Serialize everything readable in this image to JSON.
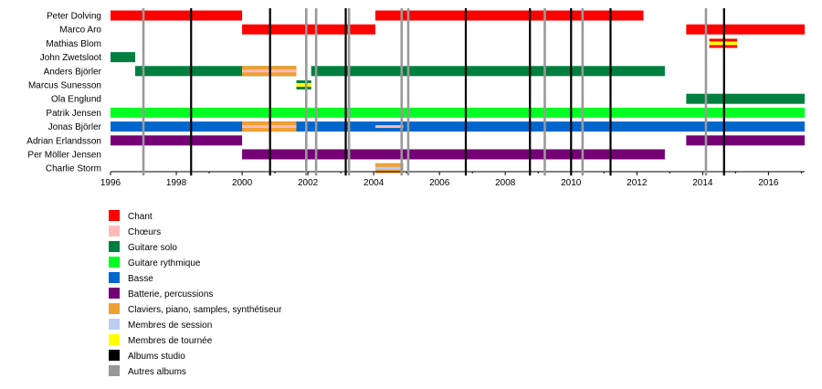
{
  "chart_data": {
    "type": "timeline",
    "title": "",
    "xlim": [
      1996,
      2017.1
    ],
    "x_ticks": [
      1996,
      1998,
      2000,
      2002,
      2004,
      2006,
      2008,
      2010,
      2012,
      2014,
      2016
    ],
    "grid": false,
    "legend_position": "bottom-left",
    "colors": {
      "vocals": "#ff0000",
      "backing_vocals": "#ffbbbb",
      "lead_guitar": "#007f3f",
      "rhythm_guitar": "#00ff22",
      "bass": "#0066cc",
      "drums": "#750075",
      "keyboards": "#f0a030",
      "session": "#bbccf0",
      "touring": "#ffff00",
      "studio_album": "#000000",
      "other_album": "#999999"
    },
    "legend": [
      {
        "role": "vocals",
        "label": "Chant"
      },
      {
        "role": "backing_vocals",
        "label": "Chœurs"
      },
      {
        "role": "lead_guitar",
        "label": "Guitare solo"
      },
      {
        "role": "rhythm_guitar",
        "label": "Guitare rythmique"
      },
      {
        "role": "bass",
        "label": "Basse"
      },
      {
        "role": "drums",
        "label": "Batterie, percussions"
      },
      {
        "role": "keyboards",
        "label": "Claviers, piano, samples, synthétiseur"
      },
      {
        "role": "session",
        "label": "Membres de session"
      },
      {
        "role": "touring",
        "label": "Membres de tournée"
      },
      {
        "role": "studio_album",
        "label": "Albums studio"
      },
      {
        "role": "other_album",
        "label": "Autres albums"
      }
    ],
    "members": [
      {
        "name": "Peter Dolving",
        "bars": [
          {
            "role": "vocals",
            "start": 1996.0,
            "end": 2000.0
          },
          {
            "role": "vocals",
            "start": 2004.05,
            "end": 2012.2
          }
        ]
      },
      {
        "name": "Marco Aro",
        "bars": [
          {
            "role": "vocals",
            "start": 2000.0,
            "end": 2004.05
          },
          {
            "role": "vocals",
            "start": 2013.5,
            "end": 2017.1
          }
        ]
      },
      {
        "name": "Mathias Blom",
        "bars": [
          {
            "role": "vocals",
            "start": 2014.2,
            "end": 2015.05,
            "style": "touring"
          }
        ]
      },
      {
        "name": "John Zwetsloot",
        "bars": [
          {
            "role": "lead_guitar",
            "start": 1996.0,
            "end": 1996.75
          }
        ]
      },
      {
        "name": "Anders Björler",
        "bars": [
          {
            "role": "lead_guitar",
            "start": 1996.75,
            "end": 2001.65
          },
          {
            "role": "lead_guitar",
            "start": 2002.1,
            "end": 2012.85
          },
          {
            "role": "keyboards",
            "start": 2000.0,
            "end": 2001.65,
            "overlay": "backing_vocals"
          }
        ]
      },
      {
        "name": "Marcus Sunesson",
        "bars": [
          {
            "role": "lead_guitar",
            "start": 2001.65,
            "end": 2002.1,
            "style": "touring"
          }
        ]
      },
      {
        "name": "Ola Englund",
        "bars": [
          {
            "role": "lead_guitar",
            "start": 2013.5,
            "end": 2017.1
          }
        ]
      },
      {
        "name": "Patrik Jensen",
        "bars": [
          {
            "role": "rhythm_guitar",
            "start": 1996.0,
            "end": 2017.1
          }
        ]
      },
      {
        "name": "Jonas Björler",
        "bars": [
          {
            "role": "bass",
            "start": 1996.0,
            "end": 2017.1
          },
          {
            "role": "keyboards",
            "start": 2000.0,
            "end": 2001.65,
            "overlay": "backing_vocals"
          },
          {
            "role": "backing_vocals",
            "start": 2004.05,
            "end": 2004.9,
            "thin": true
          }
        ]
      },
      {
        "name": "Adrian Erlandsson",
        "bars": [
          {
            "role": "drums",
            "start": 1996.0,
            "end": 2000.0
          },
          {
            "role": "drums",
            "start": 2013.5,
            "end": 2017.1
          }
        ]
      },
      {
        "name": "Per Möller Jensen",
        "bars": [
          {
            "role": "drums",
            "start": 2000.0,
            "end": 2012.85
          }
        ]
      },
      {
        "name": "Charlie Storm",
        "bars": [
          {
            "role": "keyboards",
            "start": 2004.05,
            "end": 2004.9,
            "overlay": "session"
          }
        ]
      }
    ],
    "album_lines": [
      {
        "kind": "other_album",
        "x": 1997.0
      },
      {
        "kind": "studio_album",
        "x": 1998.45
      },
      {
        "kind": "studio_album",
        "x": 2000.85
      },
      {
        "kind": "other_album",
        "x": 2001.95
      },
      {
        "kind": "other_album",
        "x": 2002.25
      },
      {
        "kind": "studio_album",
        "x": 2003.15
      },
      {
        "kind": "other_album",
        "x": 2003.25
      },
      {
        "kind": "other_album",
        "x": 2004.85
      },
      {
        "kind": "other_album",
        "x": 2005.05
      },
      {
        "kind": "studio_album",
        "x": 2006.8
      },
      {
        "kind": "studio_album",
        "x": 2008.75
      },
      {
        "kind": "other_album",
        "x": 2009.2
      },
      {
        "kind": "studio_album",
        "x": 2010.0
      },
      {
        "kind": "other_album",
        "x": 2010.35
      },
      {
        "kind": "studio_album",
        "x": 2011.2
      },
      {
        "kind": "other_album",
        "x": 2014.1
      },
      {
        "kind": "studio_album",
        "x": 2014.65
      }
    ]
  }
}
